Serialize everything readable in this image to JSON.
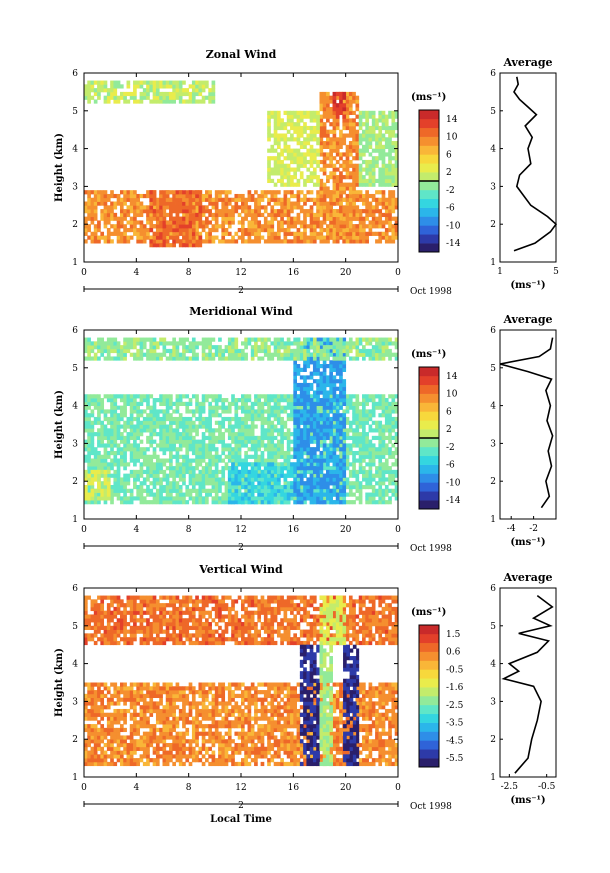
{
  "figure": {
    "xlabel": "Local Time",
    "date_label": "Oct 1998",
    "day_label": "2"
  },
  "chart_data": [
    {
      "type": "heatmap",
      "title": "Zonal Wind",
      "ylabel": "Height (km)",
      "xlabel": "Local Time",
      "x_ticks": [
        "0",
        "4",
        "8",
        "12",
        "16",
        "20",
        "0"
      ],
      "y_ticks": [
        "1",
        "2",
        "3",
        "4",
        "5",
        "6"
      ],
      "xlim": [
        0,
        24
      ],
      "ylim": [
        1,
        6
      ],
      "colorbar": {
        "unit": "(ms⁻¹)",
        "ticks": [
          "14",
          "10",
          "6",
          "2",
          "-2",
          "-6",
          "-10",
          "-14"
        ],
        "range": [
          -16,
          16
        ],
        "zero_line": true
      },
      "regions": [
        {
          "x": [
            0,
            24
          ],
          "y": [
            1.5,
            2.9
          ],
          "value": 9
        },
        {
          "x": [
            5,
            9
          ],
          "y": [
            1.4,
            2.9
          ],
          "value": 11
        },
        {
          "x": [
            18,
            21
          ],
          "y": [
            1.5,
            5.5
          ],
          "value": 9
        },
        {
          "x": [
            14,
            18
          ],
          "y": [
            3.0,
            5.0
          ],
          "value": 2
        },
        {
          "x": [
            21,
            24
          ],
          "y": [
            3.0,
            5.0
          ],
          "value": 0
        },
        {
          "x": [
            0,
            10
          ],
          "y": [
            5.2,
            5.8
          ],
          "value": 1
        },
        {
          "x": [
            19,
            20
          ],
          "y": [
            4.8,
            5.5
          ],
          "value": 14
        }
      ],
      "average_profile": {
        "title": "Average",
        "xlabel": "(ms⁻¹)",
        "x_ticks": [
          "1",
          "5"
        ],
        "xlim": [
          1,
          5
        ],
        "height": [
          1.3,
          1.5,
          1.8,
          2.0,
          2.2,
          2.5,
          2.8,
          3.0,
          3.3,
          3.6,
          4.0,
          4.3,
          4.6,
          4.9,
          5.1,
          5.3,
          5.5,
          5.7,
          5.9
        ],
        "values": [
          2.0,
          3.5,
          4.6,
          5.0,
          4.4,
          3.2,
          2.6,
          2.2,
          2.4,
          3.2,
          3.0,
          3.3,
          2.8,
          3.6,
          3.0,
          2.4,
          2.0,
          2.3,
          2.2
        ]
      }
    },
    {
      "type": "heatmap",
      "title": "Meridional Wind",
      "ylabel": "Height (km)",
      "xlabel": "Local Time",
      "x_ticks": [
        "0",
        "4",
        "8",
        "12",
        "16",
        "20",
        "0"
      ],
      "y_ticks": [
        "1",
        "2",
        "3",
        "4",
        "5",
        "6"
      ],
      "xlim": [
        0,
        24
      ],
      "ylim": [
        1,
        6
      ],
      "colorbar": {
        "unit": "(ms⁻¹)",
        "ticks": [
          "14",
          "10",
          "6",
          "2",
          "-2",
          "-6",
          "-10",
          "-14"
        ],
        "range": [
          -16,
          16
        ],
        "zero_line": true
      },
      "regions": [
        {
          "x": [
            0,
            24
          ],
          "y": [
            1.4,
            4.3
          ],
          "value": -2
        },
        {
          "x": [
            11,
            16
          ],
          "y": [
            1.4,
            2.5
          ],
          "value": -5
        },
        {
          "x": [
            16,
            20
          ],
          "y": [
            1.4,
            5.8
          ],
          "value": -8
        },
        {
          "x": [
            0,
            2
          ],
          "y": [
            1.5,
            2.3
          ],
          "value": 2
        },
        {
          "x": [
            0,
            24
          ],
          "y": [
            5.2,
            5.8
          ],
          "value": -1
        }
      ],
      "average_profile": {
        "title": "Average",
        "xlabel": "(ms⁻¹)",
        "x_ticks": [
          "-4",
          "-2"
        ],
        "xlim": [
          -5,
          0
        ],
        "height": [
          1.3,
          1.6,
          2.0,
          2.4,
          2.8,
          3.2,
          3.6,
          4.0,
          4.4,
          4.7,
          4.9,
          5.1,
          5.3,
          5.5,
          5.8
        ],
        "values": [
          -1.3,
          -0.6,
          -0.9,
          -0.4,
          -0.7,
          -0.3,
          -0.8,
          -0.5,
          -0.9,
          -0.4,
          -2.5,
          -5.0,
          -1.5,
          -0.5,
          -0.3
        ]
      }
    },
    {
      "type": "heatmap",
      "title": "Vertical Wind",
      "ylabel": "Height (km)",
      "xlabel": "Local Time",
      "x_ticks": [
        "0",
        "4",
        "8",
        "12",
        "16",
        "20",
        "0"
      ],
      "y_ticks": [
        "1",
        "2",
        "3",
        "4",
        "5",
        "6"
      ],
      "xlim": [
        0,
        24
      ],
      "ylim": [
        1,
        6
      ],
      "colorbar": {
        "unit": "(ms⁻¹)",
        "ticks": [
          "1.5",
          "0.6",
          "-0.5",
          "-1.6",
          "-2.5",
          "-3.5",
          "-4.5",
          "-5.5"
        ],
        "range": [
          -6.0,
          2.0
        ],
        "zero_line": false
      },
      "regions": [
        {
          "x": [
            0,
            24
          ],
          "y": [
            1.3,
            3.5
          ],
          "value": 0.3
        },
        {
          "x": [
            0,
            24
          ],
          "y": [
            4.5,
            5.8
          ],
          "value": 0.6
        },
        {
          "x": [
            16.5,
            18
          ],
          "y": [
            1.3,
            4.5
          ],
          "value": -5.5
        },
        {
          "x": [
            18,
            19
          ],
          "y": [
            1.3,
            4.5
          ],
          "value": -2.0
        },
        {
          "x": [
            19.8,
            21
          ],
          "y": [
            1.3,
            4.5
          ],
          "value": -5.5
        },
        {
          "x": [
            18,
            20
          ],
          "y": [
            4.5,
            5.8
          ],
          "value": -1.5
        }
      ],
      "average_profile": {
        "title": "Average",
        "xlabel": "(ms⁻¹)",
        "x_ticks": [
          "-2.5",
          "-0.5"
        ],
        "xlim": [
          -3.0,
          0.0
        ],
        "height": [
          1.1,
          1.5,
          2.0,
          2.5,
          3.0,
          3.4,
          3.6,
          3.8,
          4.0,
          4.3,
          4.6,
          4.8,
          5.0,
          5.2,
          5.5,
          5.8
        ],
        "values": [
          -2.2,
          -1.5,
          -1.3,
          -1.0,
          -0.8,
          -1.2,
          -2.8,
          -2.0,
          -2.5,
          -1.0,
          -0.4,
          -2.0,
          -0.3,
          -1.2,
          -0.2,
          -1.0
        ]
      }
    }
  ]
}
